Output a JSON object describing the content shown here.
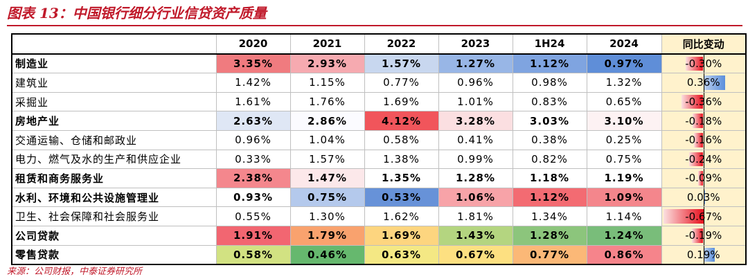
{
  "title": "图表 13：中国银行细分行业信贷资产质量",
  "columns": [
    "",
    "2020",
    "2021",
    "2022",
    "2023",
    "1H24",
    "2024",
    "同比变动"
  ],
  "rows": [
    {
      "label": "制造业",
      "bold": true,
      "values": [
        "3.35%",
        "2.93%",
        "1.57%",
        "1.27%",
        "1.12%",
        "0.97%"
      ],
      "change": "-0.30%",
      "change_value": -0.3,
      "colors": [
        "#f07b7f",
        "#f6aab0",
        "#c8d7ef",
        "#98b6e6",
        "#7fa4e0",
        "#5f8ed8"
      ]
    },
    {
      "label": "建筑业",
      "bold": false,
      "values": [
        "1.42%",
        "1.15%",
        "0.77%",
        "0.96%",
        "0.98%",
        "1.32%"
      ],
      "change": "0.36%",
      "change_value": 0.36,
      "colors": [
        "#ffffff",
        "#ffffff",
        "#ffffff",
        "#ffffff",
        "#ffffff",
        "#ffffff"
      ]
    },
    {
      "label": "采掘业",
      "bold": false,
      "values": [
        "1.61%",
        "1.76%",
        "1.69%",
        "1.01%",
        "0.83%",
        "0.65%"
      ],
      "change": "-0.36%",
      "change_value": -0.36,
      "colors": [
        "#ffffff",
        "#ffffff",
        "#ffffff",
        "#ffffff",
        "#ffffff",
        "#ffffff"
      ]
    },
    {
      "label": "房地产业",
      "bold": true,
      "values": [
        "2.63%",
        "2.86%",
        "4.12%",
        "3.28%",
        "3.03%",
        "3.10%"
      ],
      "change": "-0.18%",
      "change_value": -0.18,
      "colors": [
        "#dfe7f5",
        "#fbfbff",
        "#f1555b",
        "#fbdfe1",
        "#ffffff",
        "#fdf2f3"
      ]
    },
    {
      "label": "交通运输、仓储和邮政业",
      "bold": false,
      "values": [
        "0.96%",
        "1.04%",
        "0.58%",
        "0.41%",
        "0.38%",
        "0.25%"
      ],
      "change": "-0.16%",
      "change_value": -0.16,
      "colors": [
        "#ffffff",
        "#ffffff",
        "#ffffff",
        "#ffffff",
        "#ffffff",
        "#ffffff"
      ]
    },
    {
      "label": "电力、燃气及水的生产和供应企业",
      "bold": false,
      "values": [
        "0.33%",
        "1.57%",
        "1.38%",
        "0.99%",
        "0.82%",
        "0.75%"
      ],
      "change": "-0.24%",
      "change_value": -0.24,
      "colors": [
        "#ffffff",
        "#ffffff",
        "#ffffff",
        "#ffffff",
        "#ffffff",
        "#ffffff"
      ]
    },
    {
      "label": "租赁和商务服务业",
      "bold": true,
      "values": [
        "2.38%",
        "1.47%",
        "1.35%",
        "1.28%",
        "1.18%",
        "1.19%"
      ],
      "change": "-0.09%",
      "change_value": -0.09,
      "colors": [
        "#f4878d",
        "#fce8ea",
        "#ffffff",
        "#ffffff",
        "#ffffff",
        "#ffffff"
      ]
    },
    {
      "label": "水利、环境和公共设施管理业",
      "bold": true,
      "values": [
        "0.93%",
        "0.75%",
        "0.53%",
        "1.06%",
        "1.12%",
        "1.09%"
      ],
      "change": "0.03%",
      "change_value": 0.03,
      "colors": [
        "#ffffff",
        "#b4c9ec",
        "#6792d8",
        "#f7a3a8",
        "#f36b72",
        "#f4868c"
      ]
    },
    {
      "label": "卫生、社会保障和社会服务业",
      "bold": false,
      "values": [
        "0.55%",
        "1.30%",
        "1.62%",
        "1.81%",
        "1.34%",
        "1.14%"
      ],
      "change": "-0.67%",
      "change_value": -0.67,
      "colors": [
        "#ffffff",
        "#ffffff",
        "#ffffff",
        "#ffffff",
        "#ffffff",
        "#ffffff"
      ]
    },
    {
      "label": "公司贷款",
      "bold": true,
      "values": [
        "1.91%",
        "1.79%",
        "1.69%",
        "1.43%",
        "1.28%",
        "1.24%"
      ],
      "change": "-0.19%",
      "change_value": -0.19,
      "colors": [
        "#f26671",
        "#f9a26e",
        "#fdd57f",
        "#b4d580",
        "#8cc57c",
        "#79bd7a"
      ]
    },
    {
      "label": "零售贷款",
      "bold": true,
      "values": [
        "0.58%",
        "0.46%",
        "0.63%",
        "0.67%",
        "0.77%",
        "0.86%"
      ],
      "change": "0.19%",
      "change_value": 0.19,
      "colors": [
        "#d2e282",
        "#66b86e",
        "#f4e884",
        "#fde081",
        "#fbb877",
        "#f6848b"
      ]
    }
  ],
  "source": "来源：公司财报，中泰证券研究所"
}
